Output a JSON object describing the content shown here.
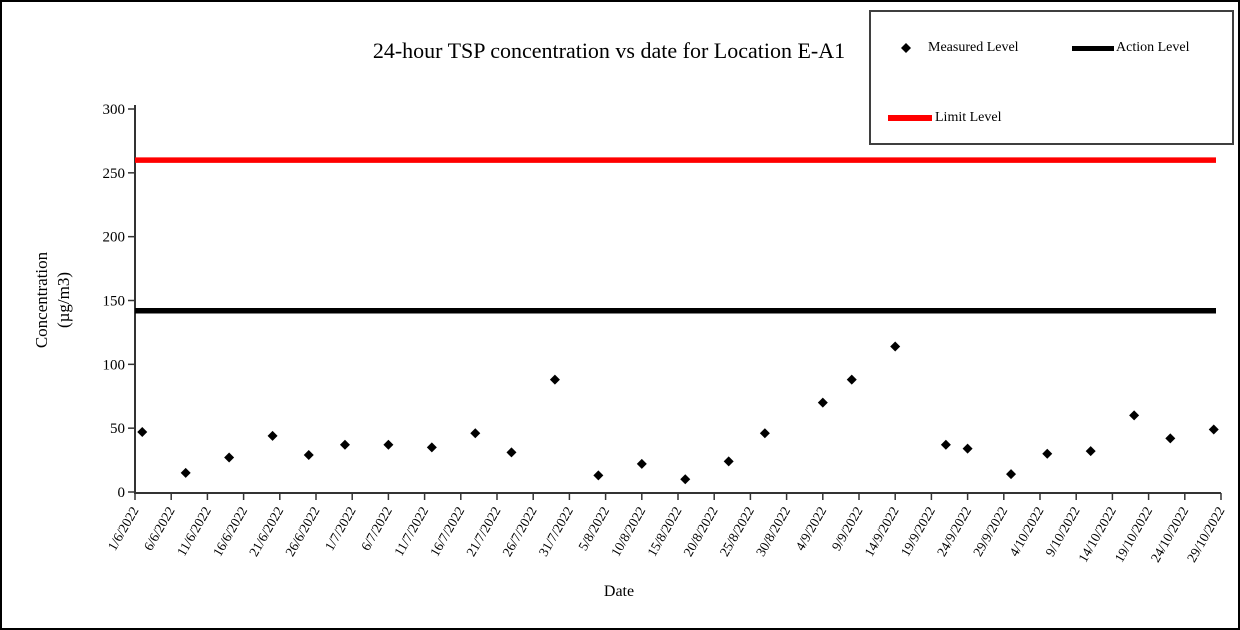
{
  "chart_data": {
    "type": "scatter",
    "title": "24-hour TSP concentration vs date for Location E-A1",
    "xlabel": "Date",
    "ylabel_lines": [
      "Concentration",
      "(µg/m3)"
    ],
    "ylim": [
      0,
      300
    ],
    "yticks": [
      0,
      50,
      100,
      150,
      200,
      250,
      300
    ],
    "x_start_date": "1/6/2022",
    "x_range_days": 150,
    "grid": false,
    "legend_position": "top-right",
    "xticklabels": [
      "1/6/2022",
      "6/6/2022",
      "11/6/2022",
      "16/6/2022",
      "21/6/2022",
      "26/6/2022",
      "1/7/2022",
      "6/7/2022",
      "11/7/2022",
      "16/7/2022",
      "21/7/2022",
      "26/7/2022",
      "31/7/2022",
      "5/8/2022",
      "10/8/2022",
      "15/8/2022",
      "20/8/2022",
      "25/8/2022",
      "30/8/2022",
      "4/9/2022",
      "9/9/2022",
      "14/9/2022",
      "19/9/2022",
      "24/9/2022",
      "29/9/2022",
      "4/10/2022",
      "9/10/2022",
      "14/10/2022",
      "19/10/2022",
      "24/10/2022",
      "29/10/2022"
    ],
    "series": [
      {
        "name": "Measured Level",
        "type": "scatter",
        "marker": "diamond",
        "color": "#000000",
        "points": [
          {
            "date": "2/6/2022",
            "value": 47
          },
          {
            "date": "8/6/2022",
            "value": 15
          },
          {
            "date": "14/6/2022",
            "value": 27
          },
          {
            "date": "20/6/2022",
            "value": 44
          },
          {
            "date": "25/6/2022",
            "value": 29
          },
          {
            "date": "30/6/2022",
            "value": 37
          },
          {
            "date": "6/7/2022",
            "value": 37
          },
          {
            "date": "12/7/2022",
            "value": 35
          },
          {
            "date": "18/7/2022",
            "value": 46
          },
          {
            "date": "23/7/2022",
            "value": 31
          },
          {
            "date": "29/7/2022",
            "value": 88
          },
          {
            "date": "4/8/2022",
            "value": 13
          },
          {
            "date": "10/8/2022",
            "value": 22
          },
          {
            "date": "16/8/2022",
            "value": 10
          },
          {
            "date": "22/8/2022",
            "value": 24
          },
          {
            "date": "27/8/2022",
            "value": 46
          },
          {
            "date": "4/9/2022",
            "value": 70
          },
          {
            "date": "8/9/2022",
            "value": 88
          },
          {
            "date": "14/9/2022",
            "value": 114
          },
          {
            "date": "21/9/2022",
            "value": 37
          },
          {
            "date": "24/9/2022",
            "value": 34
          },
          {
            "date": "30/9/2022",
            "value": 14
          },
          {
            "date": "5/10/2022",
            "value": 30
          },
          {
            "date": "11/10/2022",
            "value": 32
          },
          {
            "date": "17/10/2022",
            "value": 60
          },
          {
            "date": "22/10/2022",
            "value": 42
          },
          {
            "date": "28/10/2022",
            "value": 49
          }
        ]
      },
      {
        "name": "Action Level",
        "type": "hline",
        "value": 142,
        "color": "#000000"
      },
      {
        "name": "Limit Level",
        "type": "hline",
        "value": 260,
        "color": "#ff0000"
      }
    ]
  }
}
